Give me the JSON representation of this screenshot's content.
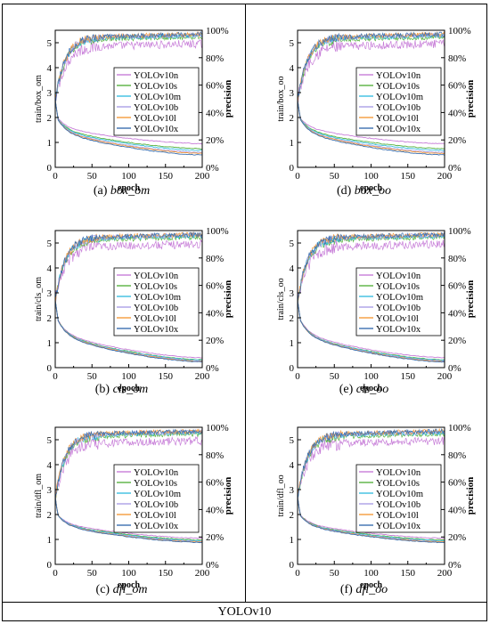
{
  "footer": "YOLOv10",
  "series_colors": [
    "#c77dd8",
    "#57b23f",
    "#3bbfe0",
    "#aaa0e6",
    "#f59b3c",
    "#3a6fb0"
  ],
  "chart_data": [
    {
      "id": "a",
      "type": "line",
      "caption_prefix": "(a) ",
      "caption_name": "box_om",
      "xlabel": "epoch",
      "ylabel_left": "train/box_om",
      "ylabel_right": "precision",
      "xlim": [
        0,
        200
      ],
      "ylim_left": [
        0,
        5.5
      ],
      "ylim_right": [
        0,
        100
      ],
      "xticks": [
        "0",
        "50",
        "100",
        "150",
        "200"
      ],
      "yticks_left": [
        "0",
        "1",
        "2",
        "3",
        "4",
        "5"
      ],
      "yticks_right": [
        "0%",
        "20%",
        "40%",
        "60%",
        "80%",
        "100%"
      ],
      "loss_end": [
        0.95,
        0.75,
        0.68,
        0.6,
        0.56,
        0.5
      ],
      "prec_end": [
        88,
        93,
        94,
        94.5,
        95,
        95
      ],
      "legend_position": "right",
      "series": [
        {
          "name": "YOLOv10n"
        },
        {
          "name": "YOLOv10s"
        },
        {
          "name": "YOLOv10m"
        },
        {
          "name": "YOLOv10b"
        },
        {
          "name": "YOLOv10l"
        },
        {
          "name": "YOLOv10x"
        }
      ]
    },
    {
      "id": "d",
      "type": "line",
      "caption_prefix": "(d) ",
      "caption_name": "box_oo",
      "xlabel": "epoch",
      "ylabel_left": "train/box_oo",
      "ylabel_right": "precision",
      "xlim": [
        0,
        200
      ],
      "ylim_left": [
        0,
        5.5
      ],
      "ylim_right": [
        0,
        100
      ],
      "xticks": [
        "0",
        "50",
        "100",
        "150",
        "200"
      ],
      "yticks_left": [
        "0",
        "1",
        "2",
        "3",
        "4",
        "5"
      ],
      "yticks_right": [
        "0%",
        "20%",
        "40%",
        "60%",
        "80%",
        "100%"
      ],
      "loss_end": [
        0.95,
        0.75,
        0.68,
        0.6,
        0.56,
        0.5
      ],
      "prec_end": [
        88,
        93,
        94,
        94.5,
        95,
        95
      ],
      "legend_position": "right",
      "series": [
        {
          "name": "YOLOv10n"
        },
        {
          "name": "YOLOv10s"
        },
        {
          "name": "YOLOv10m"
        },
        {
          "name": "YOLOv10b"
        },
        {
          "name": "YOLOv10l"
        },
        {
          "name": "YOLOv10x"
        }
      ]
    },
    {
      "id": "b",
      "type": "line",
      "caption_prefix": "(b) ",
      "caption_name": "cls_om",
      "xlabel": "epoch",
      "ylabel_left": "train/cls_om",
      "ylabel_right": "precision",
      "xlim": [
        0,
        200
      ],
      "ylim_left": [
        0,
        5.5
      ],
      "ylim_right": [
        0,
        100
      ],
      "xticks": [
        "0",
        "50",
        "100",
        "150",
        "200"
      ],
      "yticks_left": [
        "0",
        "1",
        "2",
        "3",
        "4",
        "5"
      ],
      "yticks_right": [
        "0%",
        "20%",
        "40%",
        "60%",
        "80%",
        "100%"
      ],
      "loss_end": [
        0.4,
        0.32,
        0.3,
        0.27,
        0.25,
        0.23
      ],
      "prec_end": [
        88,
        93,
        94,
        94.5,
        95,
        95
      ],
      "legend_position": "right",
      "series": [
        {
          "name": "YOLOv10n"
        },
        {
          "name": "YOLOv10s"
        },
        {
          "name": "YOLOv10m"
        },
        {
          "name": "YOLOv10b"
        },
        {
          "name": "YOLOv10l"
        },
        {
          "name": "YOLOv10x"
        }
      ]
    },
    {
      "id": "e",
      "type": "line",
      "caption_prefix": "(e) ",
      "caption_name": "cls_oo",
      "xlabel": "epoch",
      "ylabel_left": "train/cls_oo",
      "ylabel_right": "precision",
      "xlim": [
        0,
        200
      ],
      "ylim_left": [
        0,
        5.5
      ],
      "ylim_right": [
        0,
        100
      ],
      "xticks": [
        "0",
        "50",
        "100",
        "150",
        "200"
      ],
      "yticks_left": [
        "0",
        "1",
        "2",
        "3",
        "4",
        "5"
      ],
      "yticks_right": [
        "0%",
        "20%",
        "40%",
        "60%",
        "80%",
        "100%"
      ],
      "loss_end": [
        0.4,
        0.32,
        0.3,
        0.27,
        0.25,
        0.23
      ],
      "prec_end": [
        88,
        93,
        94,
        94.5,
        95,
        95
      ],
      "legend_position": "right",
      "series": [
        {
          "name": "YOLOv10n"
        },
        {
          "name": "YOLOv10s"
        },
        {
          "name": "YOLOv10m"
        },
        {
          "name": "YOLOv10b"
        },
        {
          "name": "YOLOv10l"
        },
        {
          "name": "YOLOv10x"
        }
      ]
    },
    {
      "id": "c",
      "type": "line",
      "caption_prefix": "(c) ",
      "caption_name": "dfl_om",
      "xlabel": "epoch",
      "ylabel_left": "train/dfl_om",
      "ylabel_right": "precision",
      "xlim": [
        0,
        200
      ],
      "ylim_left": [
        0,
        5.5
      ],
      "ylim_right": [
        0,
        100
      ],
      "xticks": [
        "0",
        "50",
        "100",
        "150",
        "200"
      ],
      "yticks_left": [
        "0",
        "1",
        "2",
        "3",
        "4",
        "5"
      ],
      "yticks_right": [
        "0%",
        "20%",
        "40%",
        "60%",
        "80%",
        "100%"
      ],
      "loss_end": [
        1.05,
        0.98,
        0.95,
        0.92,
        0.9,
        0.88
      ],
      "prec_end": [
        88,
        93,
        94,
        94.5,
        95,
        95
      ],
      "legend_position": "right",
      "series": [
        {
          "name": "YOLOv10n"
        },
        {
          "name": "YOLOv10s"
        },
        {
          "name": "YOLOv10m"
        },
        {
          "name": "YOLOv10b"
        },
        {
          "name": "YOLOv10l"
        },
        {
          "name": "YOLOv10x"
        }
      ]
    },
    {
      "id": "f",
      "type": "line",
      "caption_prefix": "(f) ",
      "caption_name": "dfl_oo",
      "xlabel": "epoch",
      "ylabel_left": "train/dfl_oo",
      "ylabel_right": "precision",
      "xlim": [
        0,
        200
      ],
      "ylim_left": [
        0,
        5.5
      ],
      "ylim_right": [
        0,
        100
      ],
      "xticks": [
        "0",
        "50",
        "100",
        "150",
        "200"
      ],
      "yticks_left": [
        "0",
        "1",
        "2",
        "3",
        "4",
        "5"
      ],
      "yticks_right": [
        "0%",
        "20%",
        "40%",
        "60%",
        "80%",
        "100%"
      ],
      "loss_end": [
        1.05,
        0.98,
        0.95,
        0.92,
        0.9,
        0.88
      ],
      "prec_end": [
        88,
        93,
        94,
        94.5,
        95,
        95
      ],
      "legend_position": "right",
      "series": [
        {
          "name": "YOLOv10n"
        },
        {
          "name": "YOLOv10s"
        },
        {
          "name": "YOLOv10m"
        },
        {
          "name": "YOLOv10b"
        },
        {
          "name": "YOLOv10l"
        },
        {
          "name": "YOLOv10x"
        }
      ]
    }
  ]
}
